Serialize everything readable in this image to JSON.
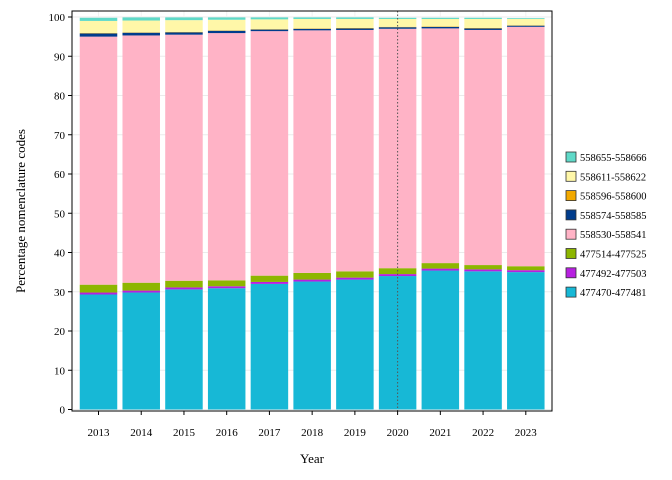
{
  "chart_data": {
    "type": "bar",
    "stacked": true,
    "xlabel": "Year",
    "ylabel": "Percentage nomenclature codes",
    "ylim": [
      0,
      100
    ],
    "yticks": [
      0,
      10,
      20,
      30,
      40,
      50,
      60,
      70,
      80,
      90,
      100
    ],
    "grid": true,
    "legend_position": "right",
    "reference_line": {
      "x": "2020",
      "style": "dotted"
    },
    "categories": [
      "2013",
      "2014",
      "2015",
      "2016",
      "2017",
      "2018",
      "2019",
      "2020",
      "2021",
      "2022",
      "2023"
    ],
    "series": [
      {
        "name": "477470-477481",
        "color": "#17B8D6",
        "values": [
          29.3,
          29.8,
          30.6,
          30.9,
          32.0,
          32.6,
          33.1,
          34.0,
          35.4,
          35.2,
          35.0
        ]
      },
      {
        "name": "477492-477503",
        "color": "#B720E0",
        "values": [
          0.5,
          0.5,
          0.5,
          0.5,
          0.5,
          0.5,
          0.5,
          0.5,
          0.5,
          0.5,
          0.5
        ]
      },
      {
        "name": "477514-477525",
        "color": "#8DB600",
        "values": [
          2.0,
          2.0,
          1.7,
          1.5,
          1.6,
          1.7,
          1.6,
          1.5,
          1.4,
          1.1,
          1.0
        ]
      },
      {
        "name": "558530-558541",
        "color": "#FFB3C6",
        "values": [
          63.2,
          63.0,
          62.7,
          63.0,
          62.3,
          61.8,
          61.5,
          61.0,
          59.8,
          59.9,
          61.0
        ]
      },
      {
        "name": "558574-558585",
        "color": "#003C8C",
        "values": [
          0.8,
          0.7,
          0.6,
          0.6,
          0.4,
          0.4,
          0.4,
          0.4,
          0.4,
          0.4,
          0.3
        ]
      },
      {
        "name": "558596-558600",
        "color": "#F2A900",
        "values": [
          0.1,
          0.1,
          0.1,
          0.1,
          0.1,
          0.1,
          0.1,
          0.1,
          0.1,
          0.1,
          0.1
        ]
      },
      {
        "name": "558611-558622",
        "color": "#FFF7A8",
        "values": [
          3.1,
          3.0,
          3.0,
          2.7,
          2.5,
          2.4,
          2.3,
          2.0,
          1.9,
          2.3,
          1.6
        ]
      },
      {
        "name": "558655-558666",
        "color": "#5FD9C8",
        "values": [
          0.8,
          0.8,
          0.7,
          0.6,
          0.5,
          0.4,
          0.4,
          0.3,
          0.3,
          0.3,
          0.2
        ]
      }
    ]
  }
}
